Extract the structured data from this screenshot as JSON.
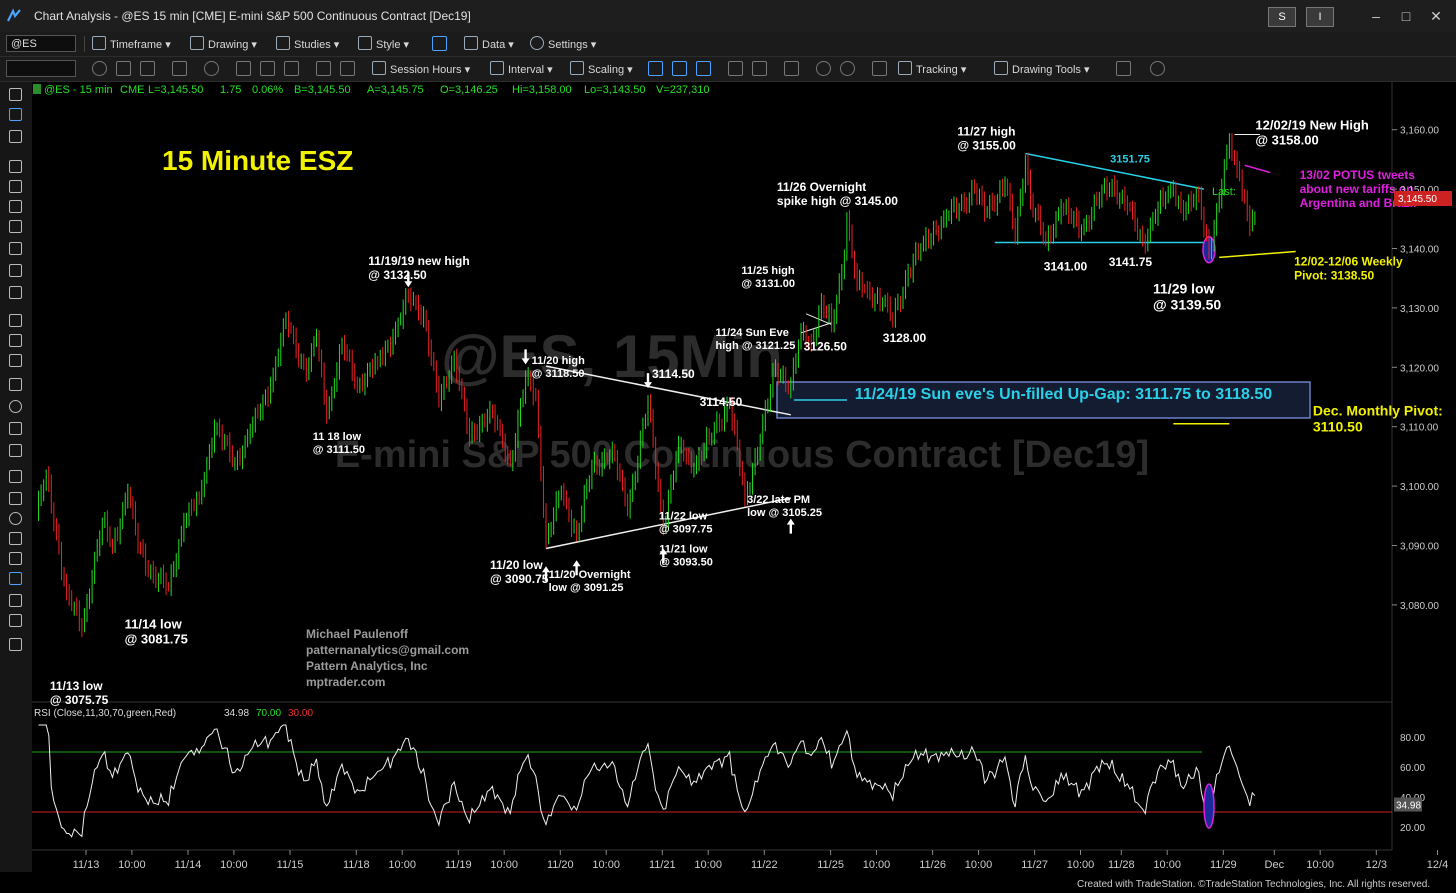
{
  "window": {
    "title": "Chart Analysis - @ES 15 min [CME] E-mini S&P 500 Continuous Contract [Dec19]",
    "s_button": "S",
    "i_button": "I"
  },
  "toolbar1": {
    "symbol": "@ES",
    "items": [
      "Timeframe",
      "Drawing",
      "Studies",
      "Style",
      "Data",
      "Settings"
    ]
  },
  "toolbar2": {
    "items": [
      "Session Hours",
      "Interval",
      "Scaling",
      "Tracking",
      "Drawing Tools"
    ]
  },
  "quote_bar": {
    "symbol": "@ES - 15 min",
    "exchange": "CME",
    "last": "L=3,145.50",
    "change": "1.75",
    "pct": "0.06%",
    "bid": "B=3,145.50",
    "ask": "A=3,145.75",
    "open": "O=3,146.25",
    "high": "Hi=3,158.00",
    "low": "Lo=3,143.50",
    "volume": "V=237,310"
  },
  "watermark": {
    "line1": "@ES, 15Min",
    "line2": "E-mini S&P 500 Continuous Contract [Dec19]"
  },
  "footer": "Created with TradeStation. ©TradeStation Technologies, Inc. All rights reserved.",
  "chart_data": {
    "type": "line",
    "title": "15 Minute ESZ",
    "ylim": [
      3065,
      3165
    ],
    "y_ticks": [
      "3,160.00",
      "3,150.00",
      "3,140.00",
      "3,130.00",
      "3,120.00",
      "3,110.00",
      "3,100.00",
      "3,090.00",
      "3,080.00"
    ],
    "y_tick_values": [
      3160,
      3150,
      3140,
      3130,
      3120,
      3110,
      3100,
      3090,
      3080
    ],
    "x_labels": [
      "11/13",
      "10:00",
      "11/14",
      "10:00",
      "11/15",
      "11/18",
      "10:00",
      "11/19",
      "10:00",
      "11/20",
      "10:00",
      "11/21",
      "10:00",
      "11/22",
      "11/25",
      "10:00",
      "11/26",
      "10:00",
      "11/27",
      "10:00",
      "11/28",
      "10:00",
      "11/29",
      "Dec",
      "10:00",
      "12/3",
      "12/4"
    ],
    "x_label_bars": [
      0,
      18,
      40,
      58,
      80,
      106,
      124,
      146,
      164,
      186,
      204,
      226,
      244,
      266,
      292,
      310,
      332,
      350,
      372,
      390,
      406,
      424,
      446,
      466,
      484,
      506,
      530
    ],
    "price_last": "3,145.50",
    "last_label": "Last:",
    "price_series_pivots": [
      [
        0,
        3095
      ],
      [
        4,
        3102
      ],
      [
        12,
        3082
      ],
      [
        18,
        3076
      ],
      [
        22,
        3085
      ],
      [
        26,
        3094
      ],
      [
        30,
        3090
      ],
      [
        36,
        3099
      ],
      [
        40,
        3090
      ],
      [
        46,
        3085
      ],
      [
        52,
        3083
      ],
      [
        58,
        3094
      ],
      [
        64,
        3098
      ],
      [
        70,
        3110
      ],
      [
        78,
        3104
      ],
      [
        84,
        3109
      ],
      [
        92,
        3117
      ],
      [
        98,
        3128
      ],
      [
        106,
        3119
      ],
      [
        110,
        3125
      ],
      [
        114,
        3112
      ],
      [
        120,
        3124
      ],
      [
        126,
        3117
      ],
      [
        134,
        3121
      ],
      [
        140,
        3125
      ],
      [
        146,
        3132
      ],
      [
        152,
        3129
      ],
      [
        158,
        3114
      ],
      [
        164,
        3122
      ],
      [
        170,
        3108
      ],
      [
        178,
        3113
      ],
      [
        186,
        3104
      ],
      [
        192,
        3118
      ],
      [
        196,
        3115
      ],
      [
        200,
        3091
      ],
      [
        206,
        3099
      ],
      [
        212,
        3092
      ],
      [
        218,
        3103
      ],
      [
        226,
        3106
      ],
      [
        232,
        3096
      ],
      [
        240,
        3114
      ],
      [
        246,
        3093
      ],
      [
        252,
        3107
      ],
      [
        258,
        3103
      ],
      [
        264,
        3108
      ],
      [
        272,
        3114
      ],
      [
        278,
        3098
      ],
      [
        284,
        3108
      ],
      [
        290,
        3120
      ],
      [
        296,
        3117
      ],
      [
        300,
        3126
      ],
      [
        304,
        3124
      ],
      [
        308,
        3131
      ],
      [
        312,
        3127
      ],
      [
        316,
        3136
      ],
      [
        318,
        3145
      ],
      [
        322,
        3134
      ],
      [
        326,
        3133
      ],
      [
        332,
        3131
      ],
      [
        336,
        3128
      ],
      [
        342,
        3136
      ],
      [
        348,
        3141
      ],
      [
        356,
        3145
      ],
      [
        362,
        3147
      ],
      [
        368,
        3150
      ],
      [
        372,
        3146
      ],
      [
        380,
        3151
      ],
      [
        384,
        3142
      ],
      [
        388,
        3155
      ],
      [
        390,
        3148
      ],
      [
        396,
        3141
      ],
      [
        402,
        3147
      ],
      [
        410,
        3143
      ],
      [
        416,
        3148
      ],
      [
        422,
        3151
      ],
      [
        428,
        3147
      ],
      [
        434,
        3141
      ],
      [
        440,
        3147
      ],
      [
        446,
        3150
      ],
      [
        450,
        3146
      ],
      [
        456,
        3149
      ],
      [
        460,
        3139.5
      ],
      [
        464,
        3148
      ],
      [
        468,
        3158
      ],
      [
        472,
        3152
      ],
      [
        476,
        3143.5
      ],
      [
        478,
        3145.5
      ]
    ],
    "annotations": [
      {
        "text": "11/13 low\n@ 3075.75",
        "bar": 18,
        "price": 3075.75
      },
      {
        "text": "11/14 low\n@ 3081.75",
        "bar": 52,
        "price": 3081.75
      },
      {
        "text": "11 18 low\n@ 3111.50",
        "bar": 114,
        "price": 3111.5
      },
      {
        "text": "11/19/19 new high\n@ 3132.50",
        "bar": 146,
        "price": 3132.5
      },
      {
        "text": "11/20 high\n@ 3118.50",
        "bar": 192,
        "price": 3118.5
      },
      {
        "text": "11/20 low\n@ 3090.75",
        "bar": 200,
        "price": 3090.75
      },
      {
        "text": "11/20 Overnight\nlow @ 3091.25",
        "bar": 212,
        "price": 3091.25
      },
      {
        "text": "3114.50",
        "bar": 240,
        "price": 3114.5
      },
      {
        "text": "11/21 low\n@ 3093.50",
        "bar": 246,
        "price": 3093.5
      },
      {
        "text": "11/24 Sun Eve\nhigh @ 3121.25",
        "bar": 290,
        "price": 3121.25
      },
      {
        "text": "3114.50",
        "bar": 272,
        "price": 3114.5
      },
      {
        "text": "3/22 late PM\nlow @ 3105.25",
        "bar": 282,
        "price": 3105.25
      },
      {
        "text": "11/22 low\n@ 3097.75",
        "bar": 278,
        "price": 3097.75
      },
      {
        "text": "11/25 high\n@ 3131.00",
        "bar": 308,
        "price": 3131.0
      },
      {
        "text": "3126.50",
        "bar": 312,
        "price": 3126.5
      },
      {
        "text": "11/26 Overnight\nspike high @ 3145.00",
        "bar": 318,
        "price": 3145.0
      },
      {
        "text": "3128.00",
        "bar": 336,
        "price": 3128.0
      },
      {
        "text": "11/27 high\n@ 3155.00",
        "bar": 388,
        "price": 3155.0
      },
      {
        "text": "3151.75",
        "bar": 422,
        "price": 3151.75
      },
      {
        "text": "3141.00",
        "bar": 396,
        "price": 3141.0
      },
      {
        "text": "3141.75",
        "bar": 434,
        "price": 3141.75
      },
      {
        "text": "12/02/19 New High\n@ 3158.00",
        "bar": 468,
        "price": 3158.0
      },
      {
        "text": "13/02 POTUS tweets\nabout new tariffs on\nArgentina and Brazil",
        "bar": 472,
        "price": 3152
      },
      {
        "text": "12/02-12/06 Weekly\nPivot: 3138.50",
        "bar": 462,
        "price": 3138.5
      },
      {
        "text": "11/29 low\n@ 3139.50",
        "bar": 460,
        "price": 3139.5
      },
      {
        "text": "11/24/19 Sun eve's Un-filled Up-Gap: 3111.75 to 3118.50",
        "bar": 296,
        "price": 3115
      },
      {
        "text": "Dec. Monthly Pivot:\n3110.50",
        "bar": 478,
        "price": 3110.5
      }
    ],
    "author": [
      "Michael Paulenoff",
      "patternanalytics@gmail.com",
      "Pattern Analytics, Inc",
      "mptrader.com"
    ],
    "rsi": {
      "label": "RSI (Close,11,30,70,green,Red)",
      "value": "34.98",
      "overbought": "70.00",
      "oversold": "30.00",
      "ylim": [
        10,
        90
      ],
      "ticks": [
        "80.00",
        "60.00",
        "40.00",
        "20.00"
      ],
      "tick_values": [
        80,
        60,
        40,
        20
      ]
    }
  }
}
